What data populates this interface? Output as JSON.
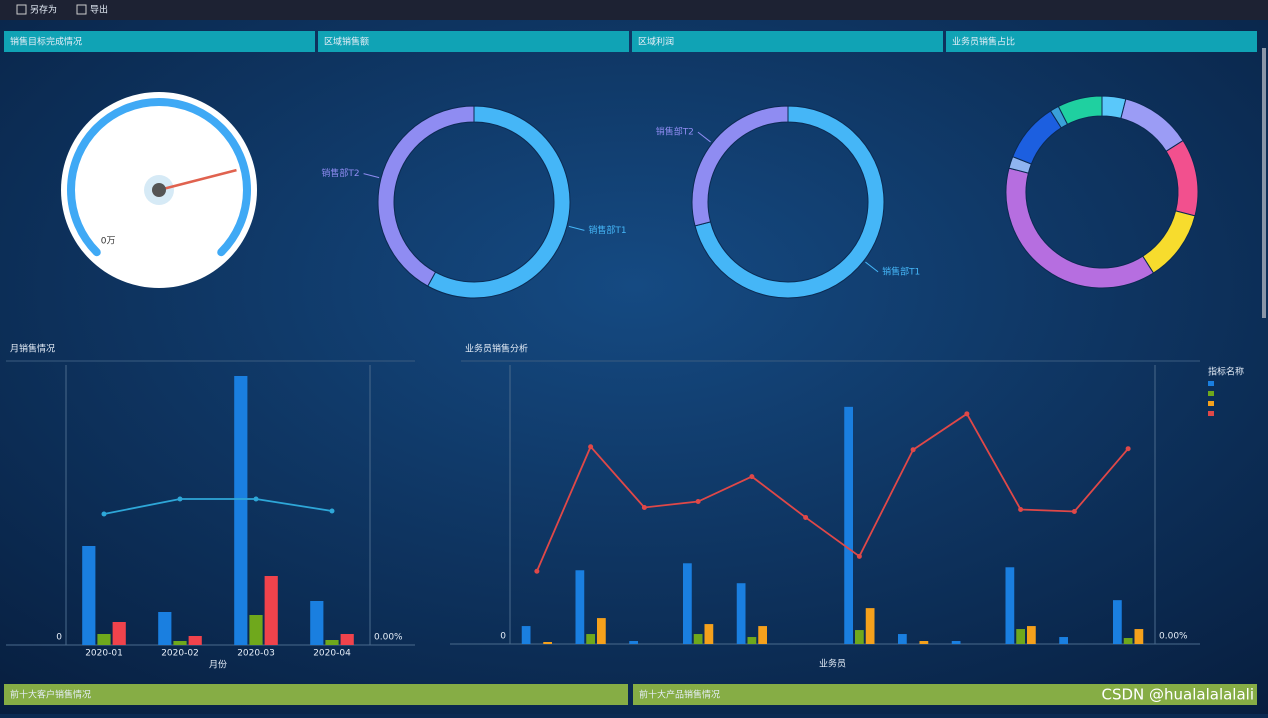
{
  "toolbar": [
    "另存为",
    "导出"
  ],
  "watermark": "CSDN @hualalalalali",
  "bottom_panels": [
    {
      "title": "前十大客户销售情况"
    },
    {
      "title": "前十大产品销售情况"
    }
  ],
  "chart_data": [
    {
      "type": "gauge",
      "title": "销售目标完成情况",
      "value": 78,
      "ylim": [
        0,
        100
      ],
      "yticks": [
        {
          "value": 0,
          "label": "0万"
        }
      ],
      "color": "#3fa9f5",
      "needle_color": "#e0624f"
    },
    {
      "type": "pie",
      "title": "区域销售额",
      "categories": [
        "销售部T1",
        "销售部T2"
      ],
      "values": [
        58,
        42
      ],
      "colors": [
        "#45b6f7",
        "#8f8cf2"
      ]
    },
    {
      "type": "pie",
      "title": "区域利润",
      "categories": [
        "销售部T1",
        "销售部T2"
      ],
      "values": [
        71,
        29
      ],
      "colors": [
        "#45b6f7",
        "#8f8cf2"
      ]
    },
    {
      "type": "pie",
      "title": "业务员销售占比",
      "categories": [
        null,
        null,
        null,
        null,
        null,
        null,
        null,
        null,
        null
      ],
      "values": [
        4,
        12,
        13,
        12,
        38,
        2,
        10,
        1.5,
        7.5
      ],
      "colors": [
        "#5ac8fa",
        "#9b9cf5",
        "#f2508e",
        "#f7dc2d",
        "#b66ee0",
        "#8fb4f0",
        "#1c5fe0",
        "#3aa0d8",
        "#1fd0a0"
      ]
    },
    {
      "type": "bar",
      "title": "月销售情况",
      "categories": [
        "2020-01",
        "2020-02",
        "2020-03",
        "2020-04"
      ],
      "x_label": "月份",
      "ylim": [
        0,
        280
      ],
      "yticks": [
        0
      ],
      "y2lim": [
        0,
        280
      ],
      "y2ticks": [
        {
          "value": 0,
          "label": "0.00%"
        }
      ],
      "grid": true,
      "series": [
        {
          "color": "#1a7fe0",
          "values": [
            99,
            33,
            269,
            44
          ]
        },
        {
          "color": "#6fa81c",
          "values": [
            11,
            4,
            30,
            5
          ]
        },
        {
          "color": "#f0434c",
          "values": [
            23,
            9,
            69,
            11
          ]
        },
        {
          "type": "line",
          "axis": "y2",
          "color": "#2ea7d8",
          "values": [
            131,
            146,
            146,
            134
          ]
        }
      ]
    },
    {
      "type": "bar",
      "title": "业务员销售分析",
      "categories": [
        null,
        null,
        null,
        null,
        null,
        null,
        null,
        null,
        null,
        null,
        null,
        null
      ],
      "x_label": "业务员",
      "legend_title": "指标名称",
      "ylim": [
        0,
        280
      ],
      "yticks": [
        0
      ],
      "y2lim": [
        0,
        280
      ],
      "y2ticks": [
        {
          "value": 0,
          "label": "0.00%"
        }
      ],
      "grid": true,
      "series": [
        {
          "color": "#1a7fe0",
          "values": [
            18,
            74,
            3,
            81,
            61,
            0,
            238,
            10,
            3,
            77,
            7,
            44
          ]
        },
        {
          "color": "#6fa81c",
          "values": [
            0,
            10,
            0,
            10,
            7,
            0,
            14,
            0,
            0,
            15,
            0,
            6
          ]
        },
        {
          "color": "#f5a11c",
          "values": [
            2,
            26,
            0,
            20,
            18,
            0,
            36,
            3,
            0,
            18,
            0,
            15
          ]
        },
        {
          "type": "line",
          "axis": "y2",
          "color": "#e04848",
          "values": [
            73,
            198,
            137,
            143,
            168,
            127,
            88,
            195,
            231,
            135,
            133,
            196
          ]
        }
      ]
    }
  ]
}
